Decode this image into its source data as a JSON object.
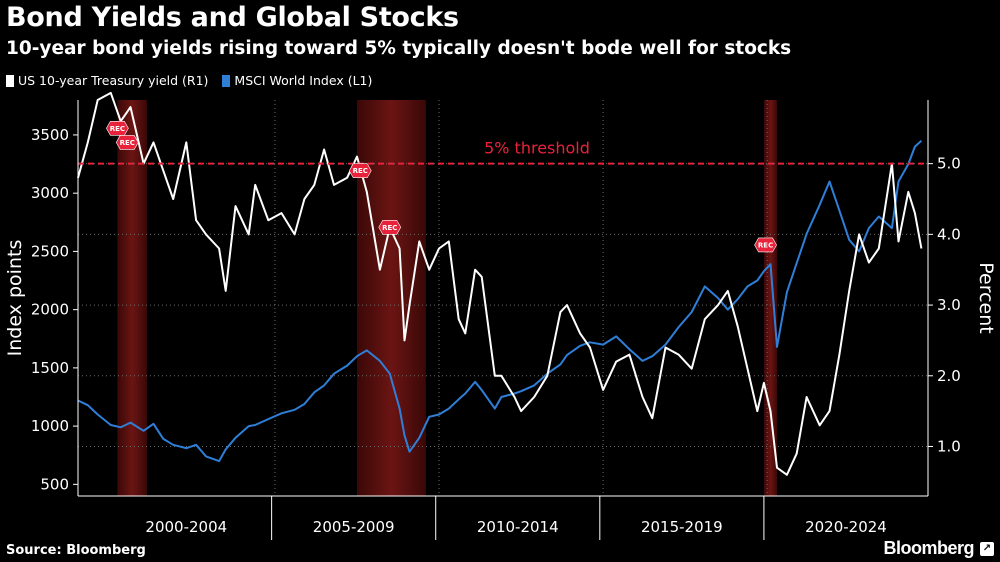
{
  "title": "Bond Yields and Global Stocks",
  "subtitle": "10-year bond yields rising toward 5% typically doesn't bode well for stocks",
  "source": "Source: Bloomberg",
  "brand": "Bloomberg",
  "brand_badge": "↗",
  "colors": {
    "treasury": "#ffffff",
    "msci": "#2f7fd8",
    "threshold": "#e8223a",
    "recession": "#6b1513",
    "background": "#000000"
  },
  "chart_data": {
    "type": "line",
    "title": "Bond Yields and Global Stocks",
    "subtitle": "10-year bond yields rising toward 5% typically doesn't bode well for stocks",
    "x_tick_labels": [
      "2000-2004",
      "2005-2009",
      "2010-2014",
      "2015-2019",
      "2020-2024"
    ],
    "xlim": [
      1999.0,
      2024.9
    ],
    "left_axis": {
      "label": "Index points",
      "ylim": [
        400,
        3800
      ],
      "ticks": [
        500,
        1000,
        1500,
        2000,
        2500,
        3000,
        3500
      ]
    },
    "right_axis": {
      "label": "Percent",
      "ylim": [
        0.3,
        5.9
      ],
      "ticks": [
        "1.0",
        "2.0",
        "3.0",
        "4.0",
        "5.0"
      ]
    },
    "threshold": {
      "value": 5.0,
      "axis": "right",
      "label": "5% threshold"
    },
    "recession_label": "REC",
    "recessions": [
      [
        2000.2,
        2001.1
      ],
      [
        2007.5,
        2009.6
      ],
      [
        2019.9,
        2020.3
      ]
    ],
    "legend": {
      "placement": "top-left"
    },
    "series": [
      {
        "name": "US 10-year Treasury yield (R1)",
        "axis": "right",
        "x": [
          1999.0,
          1999.3,
          1999.6,
          2000.0,
          2000.3,
          2000.6,
          2001.0,
          2001.3,
          2001.6,
          2001.9,
          2002.3,
          2002.6,
          2002.9,
          2003.3,
          2003.5,
          2003.8,
          2004.2,
          2004.4,
          2004.8,
          2005.2,
          2005.6,
          2005.9,
          2006.2,
          2006.5,
          2006.8,
          2007.2,
          2007.5,
          2007.8,
          2008.2,
          2008.5,
          2008.8,
          2008.95,
          2009.1,
          2009.4,
          2009.7,
          2010.0,
          2010.3,
          2010.6,
          2010.8,
          2011.1,
          2011.3,
          2011.7,
          2011.9,
          2012.3,
          2012.5,
          2012.9,
          2013.3,
          2013.7,
          2013.9,
          2014.3,
          2014.6,
          2015.0,
          2015.4,
          2015.8,
          2016.2,
          2016.5,
          2016.9,
          2017.3,
          2017.7,
          2018.1,
          2018.5,
          2018.8,
          2019.1,
          2019.4,
          2019.7,
          2019.9,
          2020.1,
          2020.3,
          2020.6,
          2020.9,
          2021.2,
          2021.6,
          2021.9,
          2022.2,
          2022.5,
          2022.8,
          2023.1,
          2023.4,
          2023.8,
          2024.0,
          2024.3,
          2024.5,
          2024.7
        ],
        "y": [
          4.8,
          5.3,
          5.9,
          6.0,
          5.6,
          5.8,
          5.0,
          5.3,
          4.9,
          4.5,
          5.3,
          4.2,
          4.0,
          3.8,
          3.2,
          4.4,
          4.0,
          4.7,
          4.2,
          4.3,
          4.0,
          4.5,
          4.7,
          5.2,
          4.7,
          4.8,
          5.1,
          4.6,
          3.5,
          4.1,
          3.8,
          2.5,
          3.0,
          3.9,
          3.5,
          3.8,
          3.9,
          2.8,
          2.6,
          3.5,
          3.4,
          2.0,
          2.0,
          1.7,
          1.5,
          1.7,
          2.0,
          2.9,
          3.0,
          2.6,
          2.4,
          1.8,
          2.2,
          2.3,
          1.7,
          1.4,
          2.4,
          2.3,
          2.1,
          2.8,
          3.0,
          3.2,
          2.7,
          2.1,
          1.5,
          1.9,
          1.5,
          0.7,
          0.6,
          0.9,
          1.7,
          1.3,
          1.5,
          2.3,
          3.2,
          4.0,
          3.6,
          3.8,
          5.0,
          3.9,
          4.6,
          4.3,
          3.8
        ]
      },
      {
        "name": "MSCI World Index  (L1)",
        "axis": "left",
        "x": [
          1999.0,
          1999.3,
          1999.6,
          2000.0,
          2000.3,
          2000.6,
          2001.0,
          2001.3,
          2001.6,
          2001.9,
          2002.3,
          2002.6,
          2002.9,
          2003.3,
          2003.5,
          2003.8,
          2004.2,
          2004.4,
          2004.8,
          2005.2,
          2005.6,
          2005.9,
          2006.2,
          2006.5,
          2006.8,
          2007.2,
          2007.5,
          2007.8,
          2008.2,
          2008.5,
          2008.8,
          2008.95,
          2009.1,
          2009.4,
          2009.7,
          2010.0,
          2010.3,
          2010.6,
          2010.8,
          2011.1,
          2011.3,
          2011.7,
          2011.9,
          2012.3,
          2012.5,
          2012.9,
          2013.3,
          2013.7,
          2013.9,
          2014.3,
          2014.6,
          2015.0,
          2015.4,
          2015.8,
          2016.2,
          2016.5,
          2016.9,
          2017.3,
          2017.7,
          2018.1,
          2018.5,
          2018.8,
          2019.1,
          2019.4,
          2019.7,
          2019.9,
          2020.1,
          2020.3,
          2020.6,
          2020.9,
          2021.2,
          2021.6,
          2021.9,
          2022.2,
          2022.5,
          2022.8,
          2023.1,
          2023.4,
          2023.8,
          2024.0,
          2024.3,
          2024.5,
          2024.7
        ],
        "y": [
          1220,
          1180,
          1100,
          1010,
          990,
          1030,
          960,
          1020,
          890,
          840,
          810,
          840,
          740,
          700,
          800,
          900,
          1000,
          1010,
          1060,
          1110,
          1140,
          1190,
          1290,
          1350,
          1450,
          1520,
          1600,
          1650,
          1560,
          1450,
          1150,
          920,
          780,
          900,
          1080,
          1100,
          1150,
          1230,
          1280,
          1380,
          1310,
          1150,
          1250,
          1280,
          1300,
          1350,
          1450,
          1530,
          1610,
          1690,
          1720,
          1700,
          1770,
          1660,
          1560,
          1600,
          1700,
          1850,
          1980,
          2200,
          2100,
          2000,
          2090,
          2200,
          2250,
          2330,
          2390,
          1680,
          2150,
          2400,
          2650,
          2900,
          3100,
          2850,
          2600,
          2500,
          2700,
          2800,
          2700,
          3100,
          3250,
          3400,
          3450
        ]
      }
    ]
  }
}
